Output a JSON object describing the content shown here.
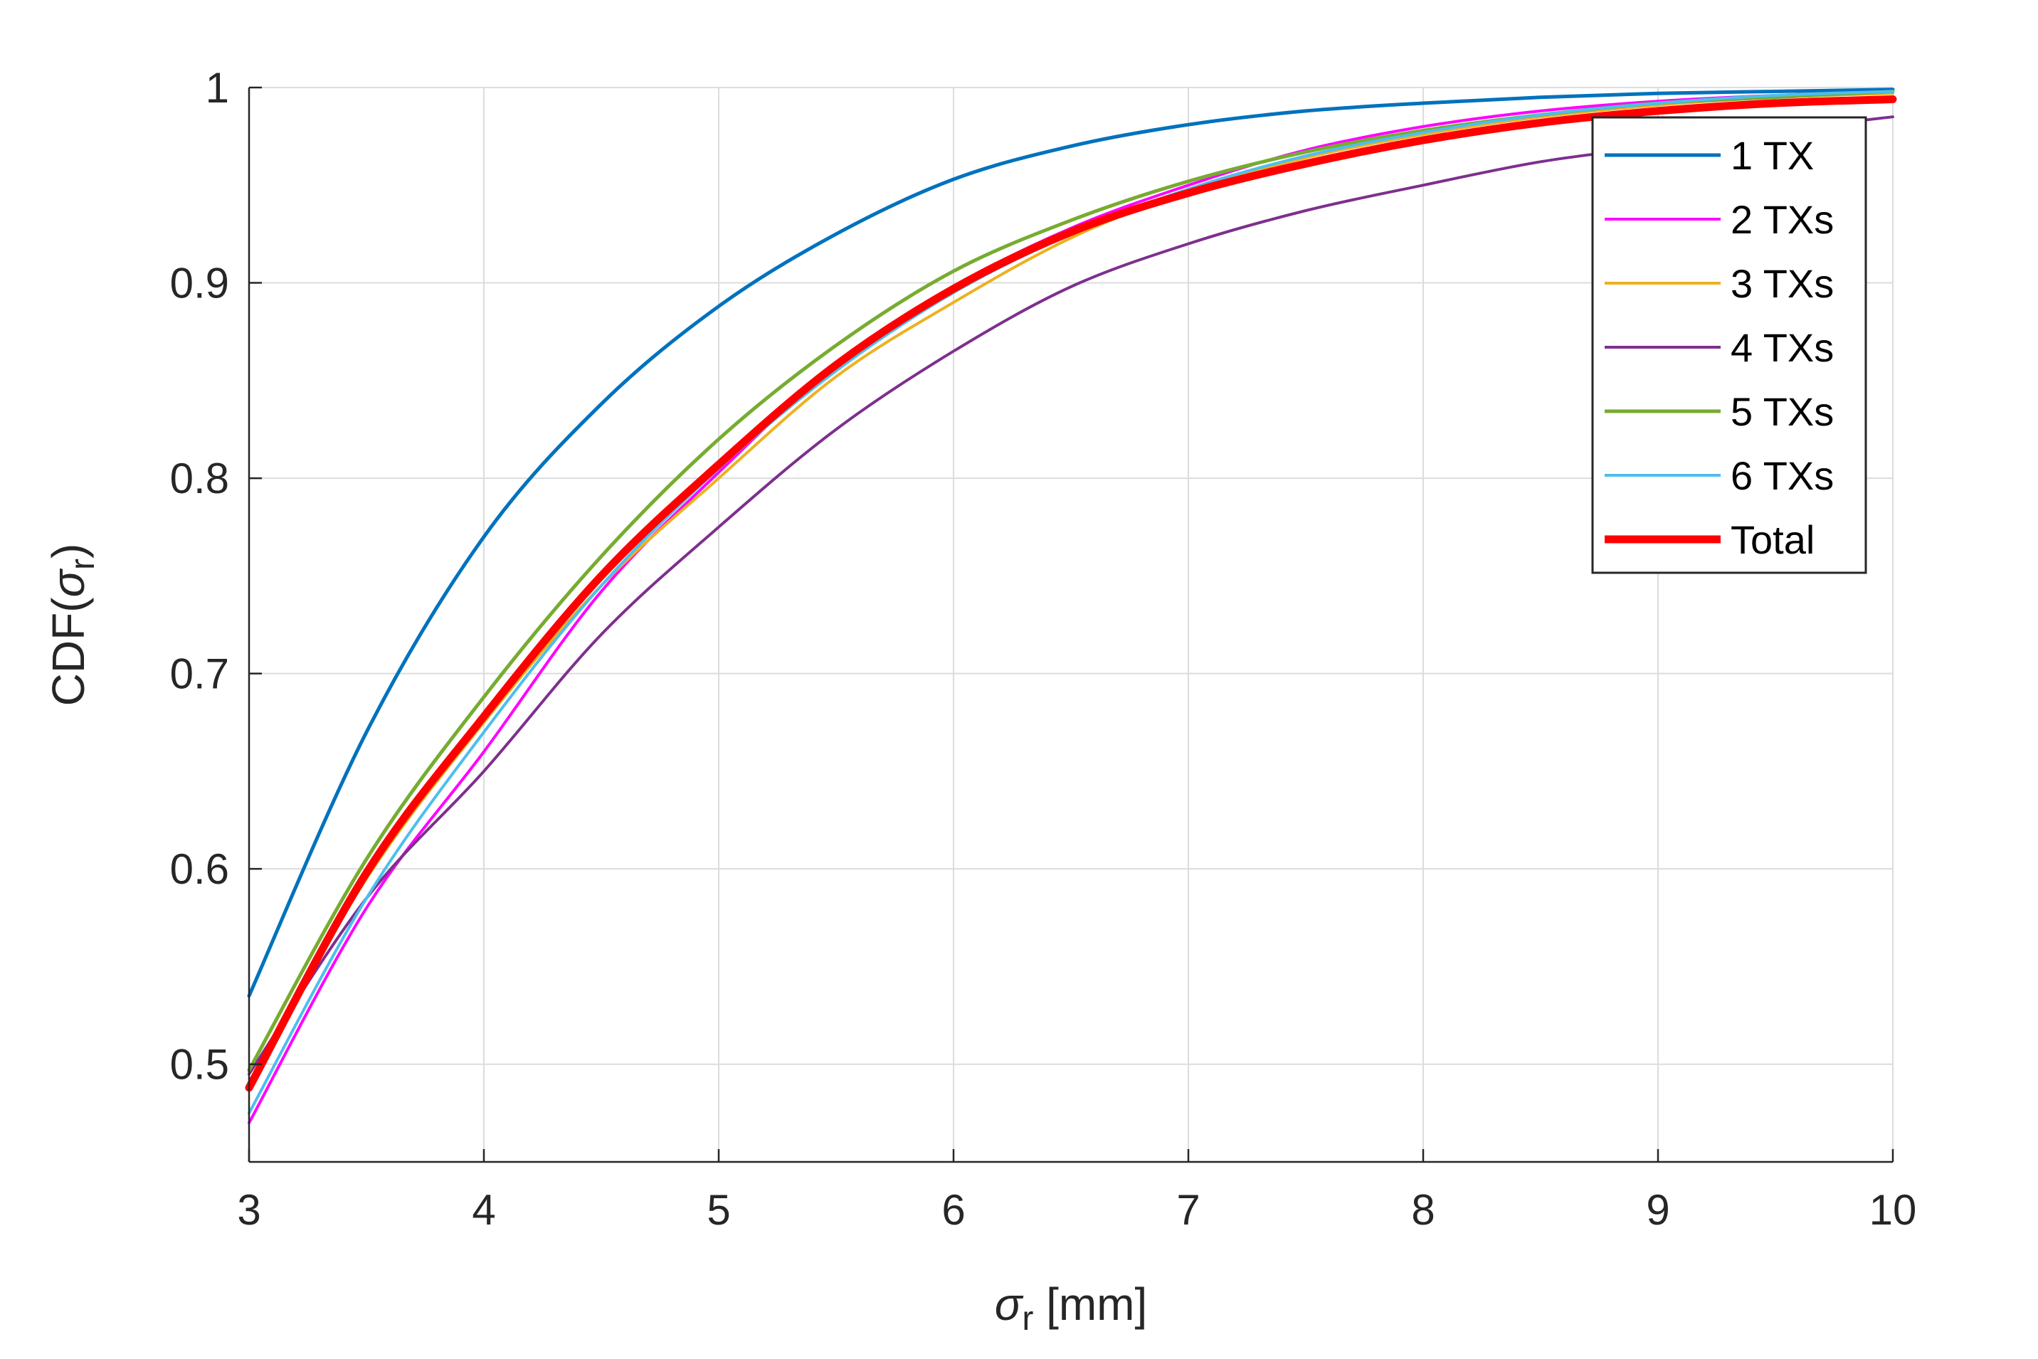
{
  "chart_data": {
    "type": "line",
    "title": "",
    "xlabel": "σ_r [mm]",
    "ylabel": "CDF(σ_r)",
    "xlim": [
      3,
      10
    ],
    "ylim": [
      0.45,
      1.0
    ],
    "xticks": [
      3,
      4,
      5,
      6,
      7,
      8,
      9,
      10
    ],
    "yticks": [
      0.5,
      0.6,
      0.7,
      0.8,
      0.9,
      1.0
    ],
    "xtick_labels": [
      "3",
      "4",
      "5",
      "6",
      "7",
      "8",
      "9",
      "10"
    ],
    "ytick_labels": [
      "0.5",
      "0.6",
      "0.7",
      "0.8",
      "0.9",
      "1"
    ],
    "grid": true,
    "legend_position": "top-right",
    "x": [
      3,
      3.5,
      4,
      4.5,
      5,
      5.5,
      6,
      6.5,
      7,
      7.5,
      8,
      8.5,
      9,
      9.5,
      10
    ],
    "series": [
      {
        "name": "1 TX",
        "color": "#0072BD",
        "width": 5,
        "values": [
          0.535,
          0.67,
          0.77,
          0.838,
          0.888,
          0.925,
          0.953,
          0.97,
          0.981,
          0.988,
          0.992,
          0.995,
          0.997,
          0.998,
          0.999
        ]
      },
      {
        "name": "2 TXs",
        "color": "#FF00FF",
        "width": 4,
        "values": [
          0.47,
          0.58,
          0.66,
          0.742,
          0.803,
          0.858,
          0.898,
          0.928,
          0.95,
          0.968,
          0.98,
          0.988,
          0.993,
          0.996,
          0.998
        ]
      },
      {
        "name": "3 TXs",
        "color": "#EDB120",
        "width": 4,
        "values": [
          0.49,
          0.595,
          0.675,
          0.745,
          0.8,
          0.852,
          0.89,
          0.923,
          0.947,
          0.964,
          0.976,
          0.985,
          0.991,
          0.995,
          0.997
        ]
      },
      {
        "name": "4 TXs",
        "color": "#7E2F8E",
        "width": 4,
        "values": [
          0.495,
          0.585,
          0.65,
          0.72,
          0.775,
          0.825,
          0.865,
          0.898,
          0.92,
          0.937,
          0.95,
          0.962,
          0.97,
          0.978,
          0.985
        ]
      },
      {
        "name": "5 TXs",
        "color": "#77AC30",
        "width": 5,
        "values": [
          0.497,
          0.605,
          0.688,
          0.76,
          0.82,
          0.868,
          0.906,
          0.932,
          0.952,
          0.967,
          0.978,
          0.986,
          0.992,
          0.995,
          0.998
        ]
      },
      {
        "name": "6 TXs",
        "color": "#4DBEEE",
        "width": 4,
        "values": [
          0.475,
          0.585,
          0.67,
          0.745,
          0.805,
          0.855,
          0.895,
          0.925,
          0.948,
          0.965,
          0.977,
          0.986,
          0.992,
          0.996,
          0.998
        ]
      },
      {
        "name": "Total",
        "color": "#FF0000",
        "width": 11,
        "values": [
          0.488,
          0.598,
          0.678,
          0.75,
          0.807,
          0.858,
          0.897,
          0.926,
          0.946,
          0.961,
          0.973,
          0.982,
          0.988,
          0.992,
          0.994
        ]
      }
    ]
  }
}
